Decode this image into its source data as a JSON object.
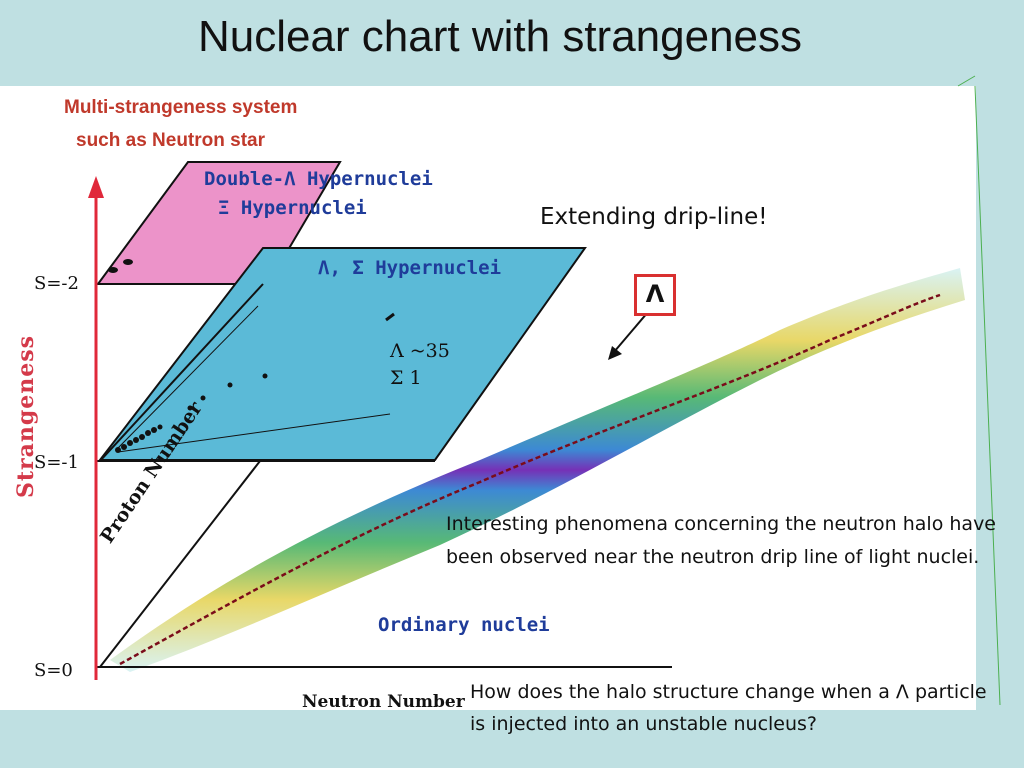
{
  "title": "Nuclear chart with strangeness",
  "multi_strangeness": {
    "line1": "Multi-strangeness system",
    "line2": "such as Neutron star"
  },
  "planes": {
    "double_lambda": "Double-Λ Hypernuclei",
    "xi": "Ξ Hypernuclei",
    "lambda_sigma": "Λ, Σ Hypernuclei",
    "ordinary": "Ordinary nuclei"
  },
  "counts": {
    "lambda": "Λ ~35",
    "sigma": "Σ 1"
  },
  "axes": {
    "strangeness": "Strangeness",
    "proton": "Proton Number",
    "neutron": "Neutron Number",
    "s_minus2": "S=-2",
    "s_minus1": "S=-1",
    "s_0": "S=0"
  },
  "drip_line": "Extending drip-line!",
  "lambda_symbol": "Λ",
  "text_halo": "Interesting phenomena concerning the neutron halo have   been observed near the neutron drip line of light nuclei.",
  "text_question": "How does the halo structure change when a Λ particle is injected into an unstable nucleus?",
  "colors": {
    "background": "#bfe0e2",
    "pink_plane": "#ec93c9",
    "blue_plane": "#5bbad7",
    "axis_red": "#e0283a",
    "label_blue": "#1f3c9a",
    "label_red": "#c0392b"
  }
}
